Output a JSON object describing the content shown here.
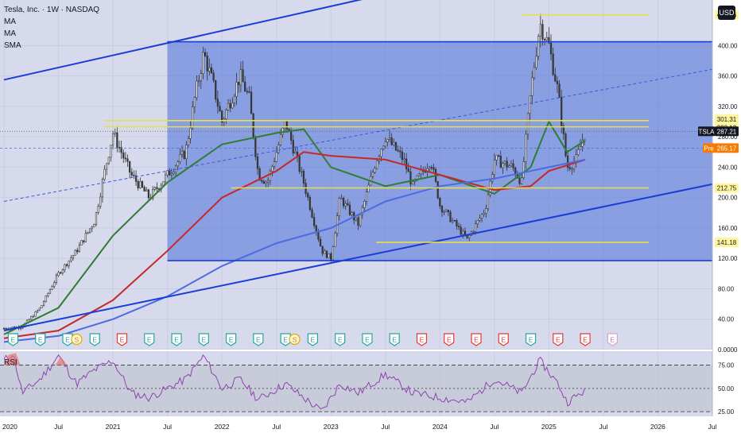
{
  "header": {
    "symbol_line": "Tesla, Inc. · 1W · NASDAQ",
    "indicators": [
      "MA",
      "MA",
      "SMA"
    ],
    "currency": "USD"
  },
  "rsi_panel": {
    "label": "RSI",
    "levels": [
      "75.00",
      "50.00",
      "25.00"
    ]
  },
  "chart_data": {
    "type": "candlestick",
    "symbol": "TSLA",
    "ylim": [
      0,
      460
    ],
    "y_ticks": [
      "400.00",
      "360.00",
      "320.00",
      "280.00",
      "240.00",
      "200.00",
      "160.00",
      "120.00",
      "80.00",
      "40.00",
      "0.0000"
    ],
    "top_tick_partial": "400.00",
    "x_ticks": [
      "2020",
      "Jul",
      "2021",
      "Jul",
      "2022",
      "Jul",
      "2023",
      "Jul",
      "2024",
      "Jul",
      "2025",
      "Jul",
      "2026",
      "Jul",
      "20"
    ],
    "price_labels": [
      {
        "text": "440.46",
        "value": 440.46,
        "style": "yellow"
      },
      {
        "text": "301.31",
        "value": 301.31,
        "style": "yellow"
      },
      {
        "text": "293.13",
        "value": 293.13,
        "style": "yellow"
      },
      {
        "text": "212.75",
        "value": 212.75,
        "style": "yellow"
      },
      {
        "text": "141.18",
        "value": 141.18,
        "style": "yellow"
      },
      {
        "text": "TSLA",
        "value": 287.21,
        "style": "dark-tag"
      },
      {
        "text": "287.21",
        "value": 287.21,
        "style": "dark"
      },
      {
        "text": "Pre",
        "value": 265.17,
        "style": "orange-tag"
      },
      {
        "text": "265.17",
        "value": 265.17,
        "style": "orange"
      }
    ],
    "horizontal_levels": [
      {
        "value": 440.46,
        "color": "#e8e04a",
        "x_from": "2024-10",
        "x_to": "2025-12"
      },
      {
        "value": 301.31,
        "color": "#e8e04a",
        "x_from": "2020-12",
        "x_to": "2025-12"
      },
      {
        "value": 293.13,
        "color": "#e8e04a",
        "x_from": "2020-12",
        "x_to": "2025-12"
      },
      {
        "value": 212.75,
        "color": "#e8e04a",
        "x_from": "2022-02",
        "x_to": "2025-12"
      },
      {
        "value": 141.18,
        "color": "#e8e04a",
        "x_from": "2023-06",
        "x_to": "2025-12"
      },
      {
        "value": 405,
        "color": "#1a3dd8",
        "x_from": "2021-07",
        "x_to": "2026-12"
      },
      {
        "value": 117,
        "color": "#1a3dd8",
        "x_from": "2021-07",
        "x_to": "2026-12"
      }
    ],
    "channel_lines": [
      {
        "from": [
          "2020-01",
          355
        ],
        "to": [
          "2026-09",
          570
        ],
        "color": "#1a3dd8"
      },
      {
        "from": [
          "2020-01",
          25
        ],
        "to": [
          "2026-12",
          230
        ],
        "color": "#1a3dd8"
      },
      {
        "from": [
          "2020-01",
          195
        ],
        "to": [
          "2026-12",
          380
        ],
        "color": "#3a5ad8",
        "dashed": true
      }
    ],
    "range_box": {
      "x_from": "2021-07",
      "x_to": "2026-12",
      "y_from": 117,
      "y_to": 405
    },
    "price_path": [
      [
        "2020-01",
        28
      ],
      [
        "2020-03",
        30
      ],
      [
        "2020-05",
        55
      ],
      [
        "2020-07",
        100
      ],
      [
        "2020-09",
        130
      ],
      [
        "2020-11",
        170
      ],
      [
        "2020-12",
        230
      ],
      [
        "2021-01",
        285
      ],
      [
        "2021-03",
        230
      ],
      [
        "2021-05",
        200
      ],
      [
        "2021-07",
        230
      ],
      [
        "2021-09",
        260
      ],
      [
        "2021-10",
        330
      ],
      [
        "2021-11",
        390
      ],
      [
        "2021-12",
        350
      ],
      [
        "2022-01",
        300
      ],
      [
        "2022-03",
        360
      ],
      [
        "2022-04",
        330
      ],
      [
        "2022-05",
        230
      ],
      [
        "2022-06",
        220
      ],
      [
        "2022-08",
        300
      ],
      [
        "2022-10",
        220
      ],
      [
        "2022-12",
        130
      ],
      [
        "2023-01",
        120
      ],
      [
        "2023-02",
        200
      ],
      [
        "2023-04",
        165
      ],
      [
        "2023-06",
        250
      ],
      [
        "2023-07",
        280
      ],
      [
        "2023-09",
        250
      ],
      [
        "2023-10",
        215
      ],
      [
        "2023-12",
        250
      ],
      [
        "2024-01",
        190
      ],
      [
        "2024-04",
        145
      ],
      [
        "2024-06",
        185
      ],
      [
        "2024-07",
        250
      ],
      [
        "2024-09",
        240
      ],
      [
        "2024-10",
        220
      ],
      [
        "2024-11",
        340
      ],
      [
        "2024-12",
        430
      ],
      [
        "2025-01",
        400
      ],
      [
        "2025-02",
        340
      ],
      [
        "2025-03",
        240
      ],
      [
        "2025-04",
        250
      ],
      [
        "2025-05",
        287
      ]
    ],
    "series": [
      {
        "name": "",
        "color": "#2e7d32",
        "values": [
          [
            "2020-01",
            20
          ],
          [
            "2020-07",
            55
          ],
          [
            "2021-01",
            150
          ],
          [
            "2021-07",
            220
          ],
          [
            "2022-01",
            270
          ],
          [
            "2022-07",
            285
          ],
          [
            "2022-10",
            290
          ],
          [
            "2023-01",
            240
          ],
          [
            "2023-07",
            215
          ],
          [
            "2024-01",
            230
          ],
          [
            "2024-07",
            205
          ],
          [
            "2024-11",
            240
          ],
          [
            "2025-01",
            300
          ],
          [
            "2025-03",
            260
          ],
          [
            "2025-05",
            275
          ]
        ]
      },
      {
        "name": "",
        "color": "#c62828",
        "values": [
          [
            "2020-01",
            15
          ],
          [
            "2020-07",
            25
          ],
          [
            "2021-01",
            65
          ],
          [
            "2021-07",
            130
          ],
          [
            "2022-01",
            200
          ],
          [
            "2022-07",
            235
          ],
          [
            "2022-10",
            260
          ],
          [
            "2023-01",
            255
          ],
          [
            "2023-07",
            250
          ],
          [
            "2024-01",
            230
          ],
          [
            "2024-07",
            210
          ],
          [
            "2024-11",
            215
          ],
          [
            "2025-01",
            235
          ],
          [
            "2025-05",
            250
          ]
        ]
      },
      {
        "name": "",
        "color": "#4d6be0",
        "values": [
          [
            "2020-01",
            10
          ],
          [
            "2020-07",
            18
          ],
          [
            "2021-01",
            40
          ],
          [
            "2021-07",
            70
          ],
          [
            "2022-01",
            110
          ],
          [
            "2022-07",
            140
          ],
          [
            "2023-01",
            160
          ],
          [
            "2023-07",
            195
          ],
          [
            "2024-01",
            215
          ],
          [
            "2024-07",
            225
          ],
          [
            "2025-01",
            240
          ],
          [
            "2025-05",
            250
          ]
        ]
      }
    ],
    "earnings_markers": [
      {
        "x": "2020-02",
        "type": "E"
      },
      {
        "x": "2020-05",
        "type": "E"
      },
      {
        "x": "2020-08",
        "type": "E"
      },
      {
        "x": "2020-09",
        "type": "S"
      },
      {
        "x": "2020-11",
        "type": "E"
      },
      {
        "x": "2021-02",
        "type": "E",
        "negative": true
      },
      {
        "x": "2021-05",
        "type": "E"
      },
      {
        "x": "2021-08",
        "type": "E"
      },
      {
        "x": "2021-11",
        "type": "E"
      },
      {
        "x": "2022-02",
        "type": "E"
      },
      {
        "x": "2022-05",
        "type": "E"
      },
      {
        "x": "2022-08",
        "type": "E"
      },
      {
        "x": "2022-09",
        "type": "S"
      },
      {
        "x": "2022-11",
        "type": "E"
      },
      {
        "x": "2023-02",
        "type": "E"
      },
      {
        "x": "2023-05",
        "type": "E"
      },
      {
        "x": "2023-08",
        "type": "E"
      },
      {
        "x": "2023-11",
        "type": "E",
        "negative": true
      },
      {
        "x": "2024-02",
        "type": "E",
        "negative": true
      },
      {
        "x": "2024-05",
        "type": "E",
        "negative": true
      },
      {
        "x": "2024-08",
        "type": "E",
        "negative": true
      },
      {
        "x": "2024-11",
        "type": "E"
      },
      {
        "x": "2025-02",
        "type": "E",
        "negative": true
      },
      {
        "x": "2025-05",
        "type": "E",
        "negative": true
      },
      {
        "x": "2025-08",
        "type": "E",
        "upcoming": true
      }
    ],
    "rsi": {
      "ylim": [
        20,
        90
      ],
      "levels": [
        75,
        50,
        25
      ],
      "values": [
        [
          "2020-01",
          80
        ],
        [
          "2020-02",
          88
        ],
        [
          "2020-03",
          45
        ],
        [
          "2020-05",
          60
        ],
        [
          "2020-07",
          85
        ],
        [
          "2020-09",
          55
        ],
        [
          "2020-11",
          70
        ],
        [
          "2021-01",
          80
        ],
        [
          "2021-03",
          45
        ],
        [
          "2021-05",
          40
        ],
        [
          "2021-07",
          50
        ],
        [
          "2021-09",
          60
        ],
        [
          "2021-11",
          85
        ],
        [
          "2022-01",
          50
        ],
        [
          "2022-03",
          60
        ],
        [
          "2022-05",
          38
        ],
        [
          "2022-08",
          55
        ],
        [
          "2022-10",
          40
        ],
        [
          "2022-12",
          25
        ],
        [
          "2023-02",
          55
        ],
        [
          "2023-04",
          45
        ],
        [
          "2023-07",
          65
        ],
        [
          "2023-10",
          45
        ],
        [
          "2024-01",
          40
        ],
        [
          "2024-04",
          35
        ],
        [
          "2024-07",
          60
        ],
        [
          "2024-10",
          45
        ],
        [
          "2024-12",
          80
        ],
        [
          "2025-02",
          55
        ],
        [
          "2025-03",
          35
        ],
        [
          "2025-05",
          48
        ]
      ]
    }
  }
}
